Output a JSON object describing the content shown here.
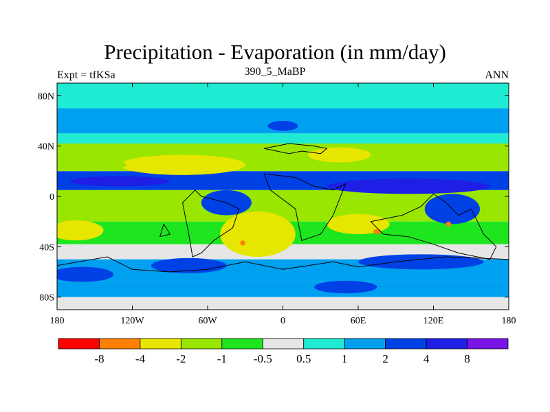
{
  "chart_data": {
    "type": "heatmap",
    "title": "Precipitation - Evaporation (in mm/day)",
    "subtitle": "390_5_MaBP",
    "left_label": "Expt = tfKSa",
    "right_label": "ANN",
    "x_ticks": [
      "180",
      "120W",
      "60W",
      "0",
      "60E",
      "120E",
      "180"
    ],
    "y_ticks": [
      "80N",
      "40N",
      "0",
      "40S",
      "80S"
    ],
    "xlim": [
      -180,
      180
    ],
    "ylim": [
      -90,
      90
    ],
    "x_tick_values": [
      -180,
      -120,
      -60,
      0,
      60,
      120,
      180
    ],
    "y_tick_values": [
      80,
      40,
      0,
      -40,
      -80
    ],
    "colorbar": {
      "labels": [
        "-8",
        "-4",
        "-2",
        "-1",
        "-0.5",
        "0.5",
        "1",
        "2",
        "4",
        "8"
      ],
      "colors": [
        "#ff0000",
        "#ff7f00",
        "#e6e600",
        "#99e600",
        "#1ee61e",
        "#e6e6e6",
        "#1eebd2",
        "#00a0f0",
        "#0041e6",
        "#1e1ee6",
        "#7814e6"
      ]
    },
    "bands": [
      {
        "lat": [
          70,
          90
        ],
        "value": 0.8
      },
      {
        "lat": [
          50,
          70
        ],
        "value": 1.5
      },
      {
        "lat": [
          42,
          50
        ],
        "value": 0.7
      },
      {
        "lat": [
          20,
          42
        ],
        "value": -1.5
      },
      {
        "lat": [
          5,
          20
        ],
        "value": 3.0
      },
      {
        "lat": [
          -20,
          5
        ],
        "value": -2.0
      },
      {
        "lat": [
          -38,
          -20
        ],
        "value": -0.7
      },
      {
        "lat": [
          -50,
          -38
        ],
        "value": 0.3
      },
      {
        "lat": [
          -68,
          -50
        ],
        "value": 1.5
      },
      {
        "lat": [
          -80,
          -68
        ],
        "value": 1.0
      },
      {
        "lat": [
          -90,
          -80
        ],
        "value": 0.3
      }
    ],
    "blobs": [
      {
        "lon": -165,
        "lat": -27,
        "rx": 22,
        "ry": 8,
        "value": -3
      },
      {
        "lon": -80,
        "lat": 25,
        "rx": 50,
        "ry": 8,
        "value": -3
      },
      {
        "lon": -150,
        "lat": 25,
        "rx": 25,
        "ry": 5,
        "value": -2
      },
      {
        "lon": 45,
        "lat": 33,
        "rx": 25,
        "ry": 6,
        "value": -3
      },
      {
        "lon": 100,
        "lat": 8,
        "rx": 65,
        "ry": 6,
        "value": 5
      },
      {
        "lon": -130,
        "lat": 12,
        "rx": 40,
        "ry": 4,
        "value": 5
      },
      {
        "lon": -45,
        "lat": -5,
        "rx": 20,
        "ry": 10,
        "value": 3
      },
      {
        "lon": 0,
        "lat": 56,
        "rx": 12,
        "ry": 4,
        "value": 3
      },
      {
        "lon": 135,
        "lat": -10,
        "rx": 22,
        "ry": 12,
        "value": 3
      },
      {
        "lon": -20,
        "lat": -30,
        "rx": 30,
        "ry": 18,
        "value": -3
      },
      {
        "lon": 60,
        "lat": -22,
        "rx": 25,
        "ry": 8,
        "value": -3
      },
      {
        "lon": -160,
        "lat": -62,
        "rx": 25,
        "ry": 6,
        "value": 3
      },
      {
        "lon": -75,
        "lat": -55,
        "rx": 30,
        "ry": 6,
        "value": 3
      },
      {
        "lon": 110,
        "lat": -52,
        "rx": 50,
        "ry": 6,
        "value": 3
      },
      {
        "lon": 50,
        "lat": -72,
        "rx": 25,
        "ry": 5,
        "value": 3
      },
      {
        "lon": -32,
        "lat": -37,
        "rx": 2,
        "ry": 2,
        "value": -6
      },
      {
        "lon": 75,
        "lat": -28,
        "rx": 3,
        "ry": 2,
        "value": -6
      },
      {
        "lon": 132,
        "lat": -22,
        "rx": 2,
        "ry": 2,
        "value": -6
      }
    ],
    "coastlines": [
      [
        [
          -15,
          38
        ],
        [
          5,
          42
        ],
        [
          25,
          40
        ],
        [
          35,
          38
        ],
        [
          30,
          34
        ],
        [
          15,
          36
        ],
        [
          5,
          34
        ],
        [
          -15,
          38
        ]
      ],
      [
        [
          -65,
          0
        ],
        [
          -45,
          -5
        ],
        [
          -35,
          -10
        ],
        [
          -40,
          -25
        ],
        [
          -55,
          -35
        ],
        [
          -65,
          -45
        ],
        [
          -72,
          -48
        ],
        [
          -75,
          -30
        ],
        [
          -80,
          -5
        ],
        [
          -70,
          5
        ],
        [
          -65,
          0
        ]
      ],
      [
        [
          -15,
          18
        ],
        [
          10,
          15
        ],
        [
          25,
          8
        ],
        [
          40,
          5
        ],
        [
          50,
          10
        ],
        [
          40,
          -15
        ],
        [
          30,
          -30
        ],
        [
          15,
          -35
        ],
        [
          10,
          -10
        ],
        [
          -10,
          5
        ],
        [
          -15,
          18
        ]
      ],
      [
        [
          70,
          -20
        ],
        [
          95,
          -15
        ],
        [
          110,
          -8
        ],
        [
          120,
          2
        ],
        [
          130,
          -5
        ],
        [
          140,
          -15
        ],
        [
          150,
          -10
        ],
        [
          160,
          -30
        ],
        [
          170,
          -40
        ],
        [
          165,
          -50
        ],
        [
          140,
          -45
        ],
        [
          120,
          -38
        ],
        [
          100,
          -32
        ],
        [
          80,
          -30
        ],
        [
          70,
          -20
        ]
      ],
      [
        [
          -95,
          -22
        ],
        [
          -90,
          -30
        ],
        [
          -98,
          -32
        ],
        [
          -95,
          -22
        ]
      ],
      [
        [
          -180,
          -55
        ],
        [
          -140,
          -48
        ],
        [
          -120,
          -58
        ],
        [
          -90,
          -60
        ],
        [
          -60,
          -58
        ],
        [
          -30,
          -52
        ],
        [
          0,
          -58
        ],
        [
          40,
          -52
        ],
        [
          60,
          -56
        ],
        [
          90,
          -52
        ],
        [
          130,
          -48
        ],
        [
          180,
          -50
        ]
      ]
    ]
  }
}
